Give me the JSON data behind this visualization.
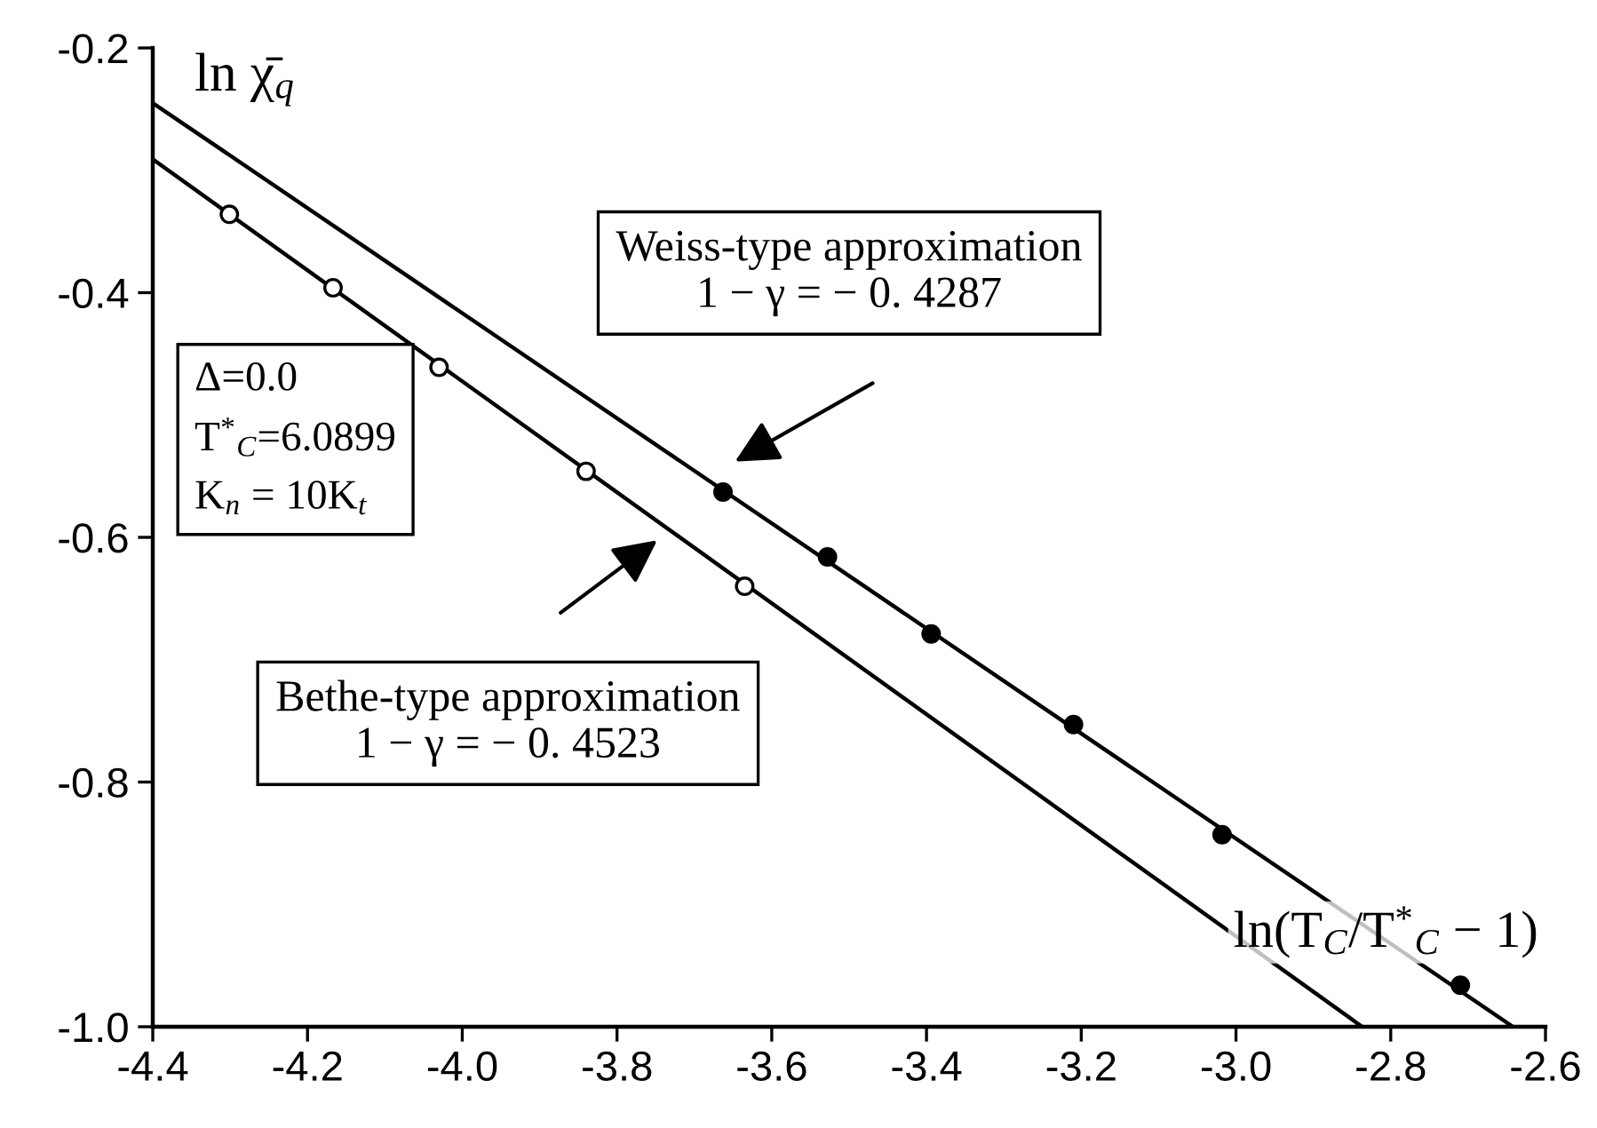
{
  "chart_data": {
    "type": "scatter",
    "xlabel": "ln(T$_{C}$/T$^{*}$$_{C}$ − 1)",
    "ylabel": "ln χ̄$_{q}$",
    "xlim": [
      -4.4,
      -2.6
    ],
    "xticks": [
      -4.4,
      -4.2,
      {
        "value": -4.0,
        "label": "-4.0"
      },
      -3.8,
      -3.6,
      -3.4,
      -3.2,
      {
        "value": -3.0,
        "label": "-3.0"
      },
      -2.8,
      -2.6
    ],
    "ylim": [
      -1.0,
      -0.2
    ],
    "yticks": [
      {
        "value": -1.0,
        "label": "-1.0"
      },
      -0.8,
      -0.6,
      -0.4,
      -0.2
    ],
    "grid": false,
    "marker": "circle",
    "series": [
      {
        "type": "line",
        "color": "#000000",
        "x": [
          -4.4,
          -2.642
        ],
        "values": [
          -0.245,
          -1.0
        ],
        "marker": "none"
      },
      {
        "type": "line",
        "color": "#000000",
        "x": [
          -4.4,
          -2.837
        ],
        "values": [
          -0.291,
          -1.0
        ],
        "marker": "none"
      },
      {
        "color": "#000000",
        "x": [
          -3.663,
          -3.528,
          -3.394,
          -3.21,
          -3.018,
          -2.71
        ],
        "values": [
          -0.563,
          -0.616,
          -0.679,
          -0.753,
          -0.843,
          -0.966
        ]
      },
      {
        "color": "#ffffff",
        "x": [
          -4.301,
          -4.167,
          -4.03,
          -3.84,
          -3.635
        ],
        "values": [
          -0.336,
          -0.396,
          -0.461,
          -0.546,
          -0.64
        ]
      }
    ],
    "annotations": [
      "Δ=0.0\nT$^{*}$$_{C}$=6.0899\nK$_{n}$ = 10K$_{t}$",
      "Weiss-type approximation\n1 − γ = − 0. 4287",
      "Bethe-type approximation\n1 − γ = − 0. 4523"
    ]
  }
}
